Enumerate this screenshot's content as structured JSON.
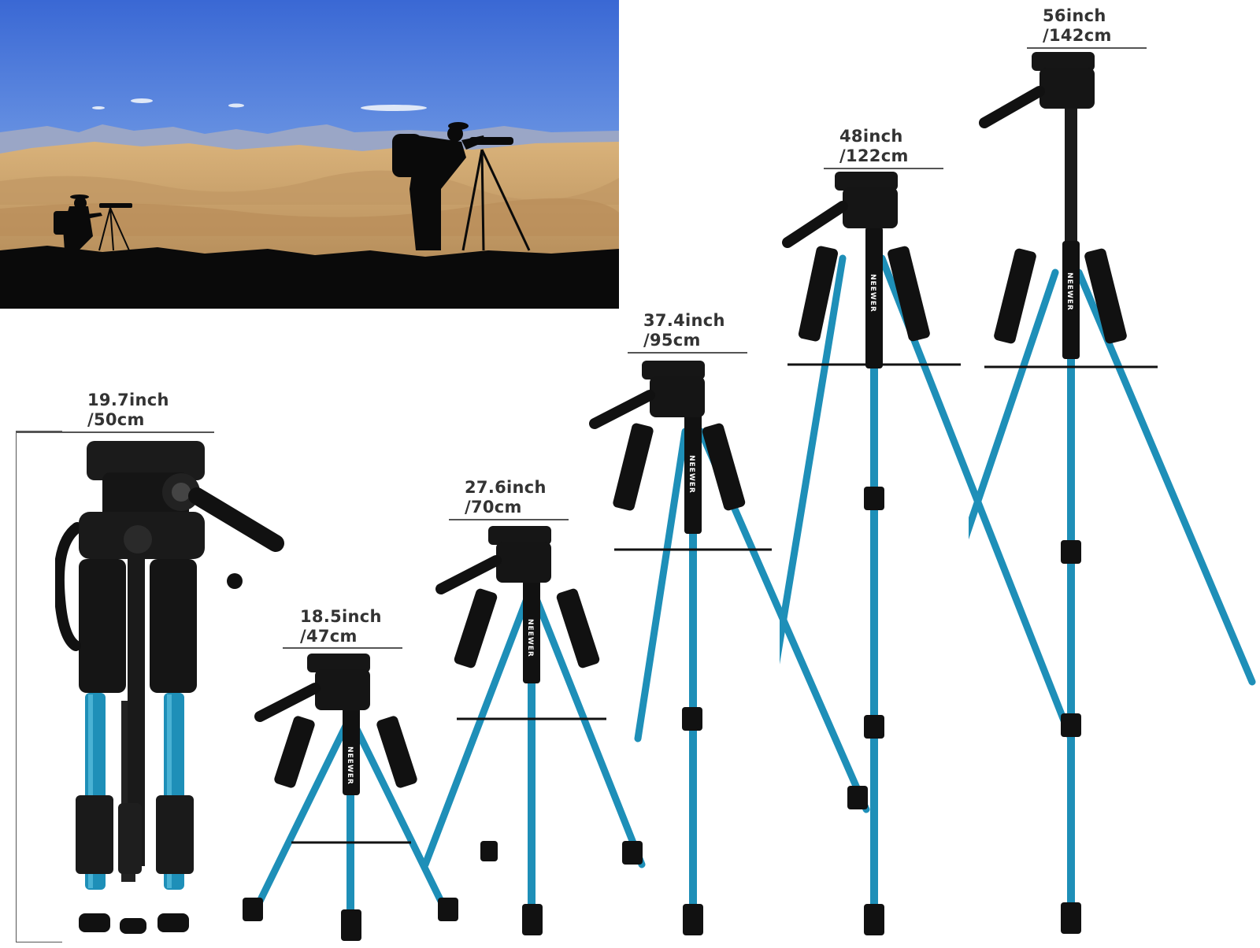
{
  "photo": {
    "description": "",
    "sky_top": "#3f6fd6",
    "sky_bottom": "#8db6f0",
    "ground": "#c9a36b"
  },
  "colors": {
    "leg": "#1e8fb8",
    "leg_dark": "#146f92",
    "black": "#111111"
  },
  "brand": "NEEWER",
  "heights": [
    {
      "inch": "19.7inch",
      "cm": "/50cm"
    },
    {
      "inch": "18.5inch",
      "cm": "/47cm"
    },
    {
      "inch": "27.6inch",
      "cm": "/70cm"
    },
    {
      "inch": "37.4inch",
      "cm": "/95cm"
    },
    {
      "inch": "48inch",
      "cm": "/122cm"
    },
    {
      "inch": "56inch",
      "cm": "/142cm"
    }
  ]
}
